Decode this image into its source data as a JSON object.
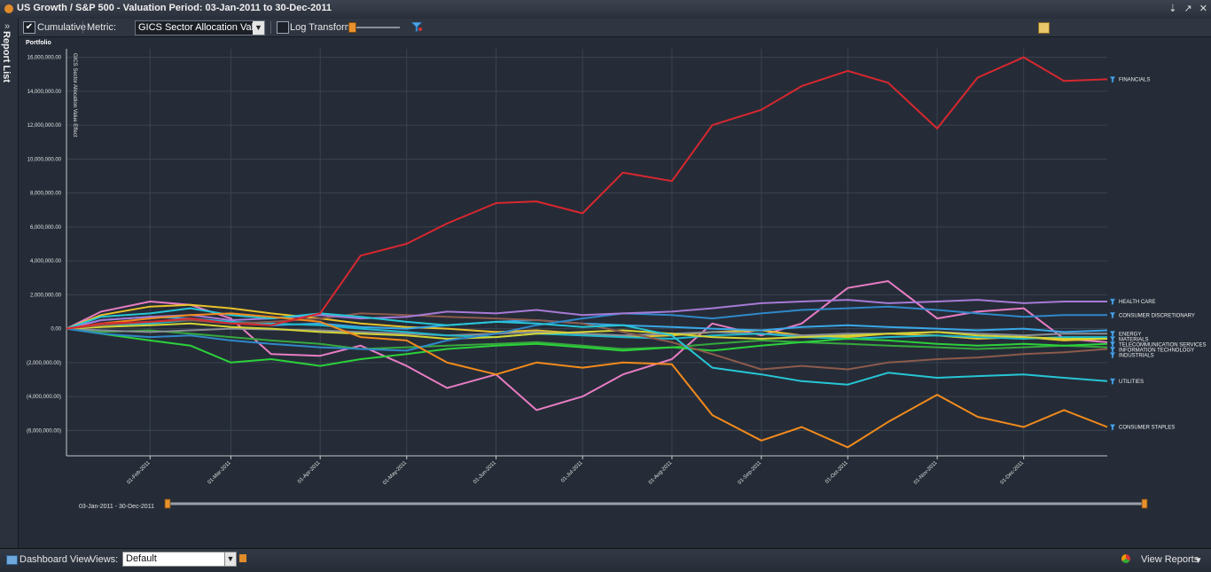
{
  "window": {
    "title": "US Growth / S&P 500 - Valuation Period: 03-Jan-2011 to 30-Dec-2011",
    "controls": [
      "⇣",
      "↗",
      "✕"
    ]
  },
  "side_rail": {
    "label": "Report List",
    "chevron": "»"
  },
  "toolbar": {
    "cumulative_label": "Cumulative",
    "cumulative_checked": true,
    "metric_label": "Metric:",
    "metric_value": "GICS Sector Allocation Value",
    "log_transform_label": "Log Transform",
    "log_transform_checked": false
  },
  "footer": {
    "dashboard_label": "Dashboard View",
    "views_label": "Views:",
    "views_value": "Default",
    "view_reports_label": "View Reports"
  },
  "range": {
    "label": "03-Jan-2011 - 30-Dec-2011"
  },
  "colors": {
    "Financials": "#d8272f",
    "Health Care": "#a77ad6",
    "Consumer Discretionary": "#2f88c9",
    "Energy": "#8a8f96",
    "Materials": "#1fb8cc",
    "Telecommunication Services": "#d4d436",
    "Information Technology": "#2bd13a",
    "Industrials": "#8c5a4c",
    "Utilities": "#26c6d6",
    "Consumer Staples": "#f28a1c",
    "Pink": "#e87cc4",
    "Yellow": "#e8c22a",
    "Green": "#36a83d",
    "Lightblue": "#3aa7e8"
  },
  "chart_data": {
    "type": "line",
    "title": "Portfolio",
    "ylabel": "GICS Sector Allocation Value Effect",
    "xlabel": "",
    "ylim": [
      -7500000,
      16500000
    ],
    "yticks": [
      16000000,
      14000000,
      12000000,
      10000000,
      8000000,
      6000000,
      4000000,
      2000000,
      0,
      -2000000,
      -4000000,
      -6000000
    ],
    "ytick_labels": [
      "16,000,000.00",
      "14,000,000.00",
      "12,000,000.00",
      "10,000,000.00",
      "8,000,000.00",
      "6,000,000.00",
      "4,000,000.00",
      "2,000,000.00",
      "0.00",
      "(2,000,000.00)",
      "(4,000,000.00)",
      "(6,000,000.00)"
    ],
    "xtick_labels": [
      "01-Feb-2011",
      "01-Mar-2011",
      "01-Apr-2011",
      "01-May-2011",
      "01-Jun-2011",
      "01-Jul-2011",
      "01-Aug-2011",
      "01-Sep-2011",
      "01-Oct-2011",
      "01-Nov-2011",
      "01-Dec-2011"
    ],
    "x": [
      "03-Jan-2011",
      "15-Jan-2011",
      "01-Feb-2011",
      "15-Feb-2011",
      "01-Mar-2011",
      "15-Mar-2011",
      "01-Apr-2011",
      "15-Apr-2011",
      "01-May-2011",
      "15-May-2011",
      "01-Jun-2011",
      "15-Jun-2011",
      "01-Jul-2011",
      "15-Jul-2011",
      "01-Aug-2011",
      "15-Aug-2011",
      "01-Sep-2011",
      "15-Sep-2011",
      "01-Oct-2011",
      "15-Oct-2011",
      "01-Nov-2011",
      "15-Nov-2011",
      "01-Dec-2011",
      "15-Dec-2011",
      "30-Dec-2011"
    ],
    "grid": true,
    "series": [
      {
        "name": "FINANCIALS",
        "color_key": "Financials",
        "values": [
          0,
          300000,
          400000,
          600000,
          300000,
          200000,
          900000,
          4300000,
          5000000,
          6200000,
          7400000,
          7500000,
          6800000,
          9200000,
          8700000,
          12000000,
          12900000,
          14300000,
          15200000,
          14500000,
          11800000,
          14800000,
          16000000,
          14600000,
          14700000
        ]
      },
      {
        "name": "HEALTH CARE",
        "color_key": "Health Care",
        "values": [
          0,
          500000,
          700000,
          800000,
          500000,
          600000,
          800000,
          600000,
          700000,
          1000000,
          900000,
          1100000,
          800000,
          900000,
          1000000,
          1200000,
          1500000,
          1600000,
          1700000,
          1500000,
          1600000,
          1700000,
          1500000,
          1600000,
          1600000
        ]
      },
      {
        "name": "CONSUMER DISCRETIONARY",
        "color_key": "Consumer Discretionary",
        "values": [
          0,
          -300000,
          -500000,
          -400000,
          -700000,
          -900000,
          -1100000,
          -1200000,
          -1300000,
          -700000,
          -300000,
          200000,
          600000,
          900000,
          800000,
          600000,
          900000,
          1100000,
          1200000,
          1300000,
          1100000,
          900000,
          700000,
          800000,
          800000
        ]
      },
      {
        "name": "ENERGY",
        "color_key": "Energy",
        "values": [
          0,
          -100000,
          -200000,
          -100000,
          0,
          -50000,
          -100000,
          -200000,
          -300000,
          -400000,
          -300000,
          -200000,
          -300000,
          -400000,
          -300000,
          -200000,
          -300000,
          -400000,
          -300000,
          -300000,
          -200000,
          -300000,
          -400000,
          -300000,
          -300000
        ]
      },
      {
        "name": "MATERIALS",
        "color_key": "Materials",
        "values": [
          0,
          200000,
          300000,
          500000,
          400000,
          300000,
          200000,
          0,
          -200000,
          -400000,
          -500000,
          -300000,
          -400000,
          -500000,
          -600000,
          -400000,
          -300000,
          -500000,
          -600000,
          -500000,
          -400000,
          -500000,
          -600000,
          -500000,
          -500000
        ]
      },
      {
        "name": "TELECOMMUNICATION SERVICES",
        "color_key": "Telecommunication Services",
        "values": [
          0,
          100000,
          200000,
          300000,
          100000,
          0,
          -200000,
          -300000,
          -400000,
          -600000,
          -500000,
          -300000,
          -200000,
          -100000,
          -300000,
          -500000,
          -600000,
          -500000,
          -400000,
          -300000,
          -200000,
          -400000,
          -500000,
          -600000,
          -600000
        ]
      },
      {
        "name": "INFORMATION TECHNOLOGY",
        "color_key": "Information Technology",
        "values": [
          0,
          -300000,
          -700000,
          -1000000,
          -2000000,
          -1800000,
          -2200000,
          -1800000,
          -1500000,
          -1200000,
          -1000000,
          -900000,
          -1100000,
          -1300000,
          -1100000,
          -1300000,
          -1000000,
          -800000,
          -600000,
          -700000,
          -900000,
          -1000000,
          -900000,
          -1000000,
          -900000
        ]
      },
      {
        "name": "INDUSTRIALS",
        "color_key": "Industrials",
        "values": [
          0,
          200000,
          400000,
          500000,
          300000,
          400000,
          600000,
          900000,
          800000,
          700000,
          600000,
          500000,
          300000,
          -200000,
          -800000,
          -1500000,
          -2400000,
          -2200000,
          -2400000,
          -2000000,
          -1800000,
          -1700000,
          -1500000,
          -1400000,
          -1200000
        ]
      },
      {
        "name": "UTILITIES",
        "color_key": "Utilities",
        "values": [
          0,
          700000,
          900000,
          1200000,
          800000,
          600000,
          900000,
          700000,
          400000,
          200000,
          400000,
          300000,
          100000,
          200000,
          -400000,
          -2300000,
          -2700000,
          -3100000,
          -3300000,
          -2600000,
          -2900000,
          -2800000,
          -2700000,
          -2900000,
          -3100000
        ]
      },
      {
        "name": "CONSUMER STAPLES",
        "color_key": "Consumer Staples",
        "values": [
          0,
          300000,
          600000,
          800000,
          900000,
          700000,
          400000,
          -500000,
          -700000,
          -2000000,
          -2700000,
          -2000000,
          -2300000,
          -2000000,
          -2100000,
          -5100000,
          -6600000,
          -5800000,
          -7000000,
          -5500000,
          -3900000,
          -5200000,
          -5800000,
          -4800000,
          -5800000
        ]
      },
      {
        "name": "",
        "color_key": "Pink",
        "values": [
          0,
          1000000,
          1600000,
          1400000,
          600000,
          -1500000,
          -1600000,
          -1000000,
          -2200000,
          -3500000,
          -2700000,
          -4800000,
          -4000000,
          -2700000,
          -1800000,
          300000,
          -400000,
          300000,
          2400000,
          2800000,
          600000,
          1000000,
          1200000,
          -600000,
          -800000
        ]
      },
      {
        "name": "",
        "color_key": "Yellow",
        "values": [
          0,
          800000,
          1300000,
          1400000,
          1200000,
          900000,
          600000,
          300000,
          100000,
          0,
          -200000,
          -100000,
          -300000,
          -500000,
          -400000,
          -200000,
          -100000,
          -400000,
          -500000,
          -300000,
          -400000,
          -600000,
          -500000,
          -700000,
          -600000
        ]
      },
      {
        "name": "",
        "color_key": "Green",
        "values": [
          0,
          -200000,
          -100000,
          -300000,
          -500000,
          -700000,
          -900000,
          -1200000,
          -1100000,
          -1000000,
          -900000,
          -800000,
          -1000000,
          -1200000,
          -1100000,
          -900000,
          -700000,
          -800000,
          -900000,
          -1000000,
          -1100000,
          -1200000,
          -1100000,
          -1000000,
          -1100000
        ]
      },
      {
        "name": "",
        "color_key": "Lightblue",
        "values": [
          0,
          500000,
          700000,
          600000,
          400000,
          200000,
          300000,
          100000,
          0,
          200000,
          400000,
          500000,
          300000,
          200000,
          100000,
          0,
          -100000,
          100000,
          200000,
          100000,
          0,
          -100000,
          0,
          -200000,
          -100000
        ]
      }
    ],
    "legend_labels": [
      "FINANCIALS",
      "HEALTH CARE",
      "CONSUMER DISCRETIONARY",
      "ENERGY",
      "MATERIALS",
      "TELECOMMUNICATION SERVICES",
      "INFORMATION TECHNOLOGY",
      "INDUSTRIALS",
      "UTILITIES",
      "CONSUMER STAPLES"
    ]
  }
}
